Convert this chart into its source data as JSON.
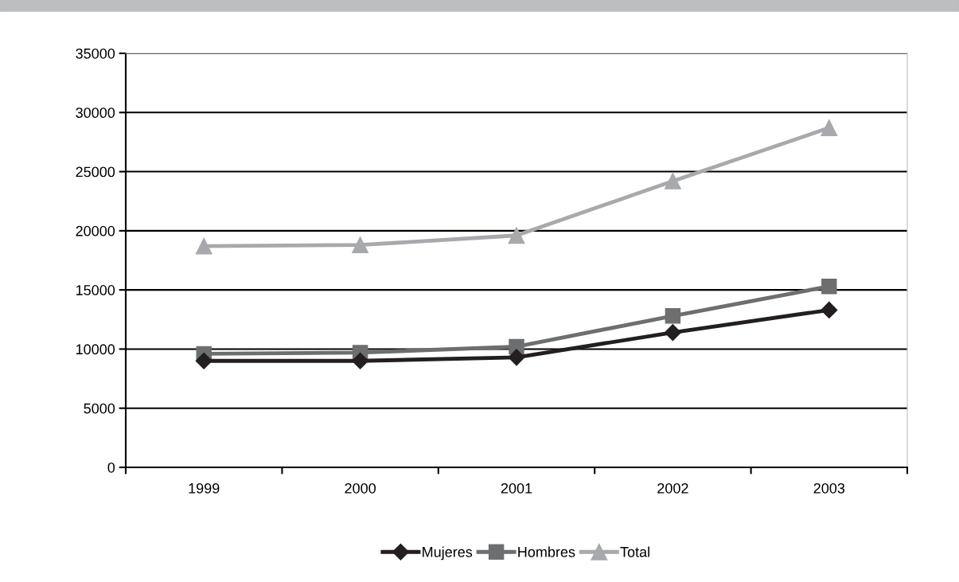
{
  "chart_data": {
    "type": "line",
    "categories": [
      "1999",
      "2000",
      "2001",
      "2002",
      "2003"
    ],
    "series": [
      {
        "name": "Mujeres",
        "color": "#231f20",
        "marker": "diamond",
        "values": [
          9000,
          9000,
          9300,
          11400,
          13300
        ]
      },
      {
        "name": "Hombres",
        "color": "#6d6e70",
        "marker": "square",
        "values": [
          9600,
          9700,
          10200,
          12800,
          15300
        ]
      },
      {
        "name": "Total",
        "color": "#a7a9ac",
        "marker": "triangle",
        "values": [
          18700,
          18800,
          19600,
          24200,
          28700
        ]
      }
    ],
    "ylim": [
      0,
      35000
    ],
    "yticks": [
      0,
      5000,
      10000,
      15000,
      20000,
      25000,
      30000,
      35000
    ],
    "grid": "y",
    "legend": "bottom"
  }
}
